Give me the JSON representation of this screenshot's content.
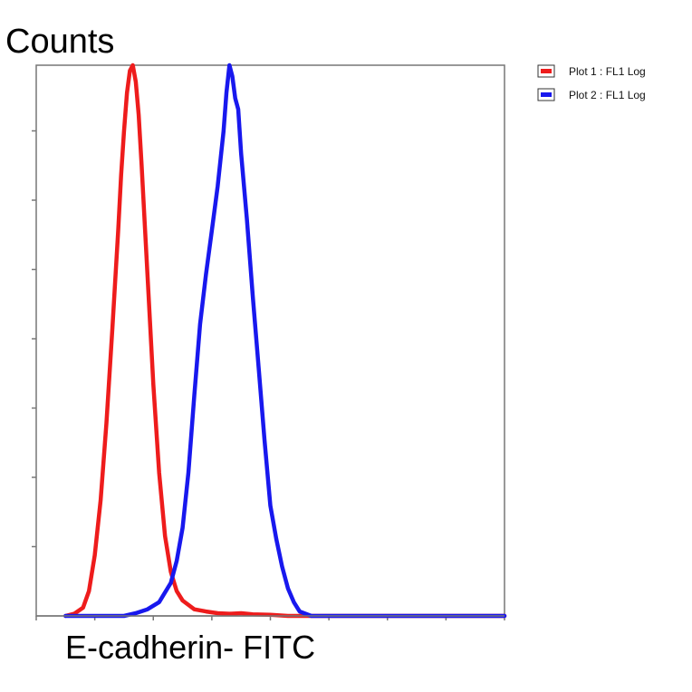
{
  "chart_data": {
    "type": "line",
    "title": "",
    "xlabel": "E-cadherin- FITC",
    "ylabel": "Counts",
    "xscale": "log",
    "xlim": [
      0,
      8
    ],
    "ylim": [
      0,
      100
    ],
    "grid": false,
    "legend_position": "top-right",
    "series": [
      {
        "name": "Plot 1 : FL1 Log",
        "color": "#ee1c1c",
        "x": [
          0.5,
          0.65,
          0.8,
          0.9,
          1.0,
          1.1,
          1.2,
          1.3,
          1.4,
          1.45,
          1.5,
          1.55,
          1.6,
          1.65,
          1.7,
          1.75,
          1.8,
          1.9,
          2.0,
          2.1,
          2.2,
          2.3,
          2.4,
          2.5,
          2.7,
          2.9,
          3.1,
          3.3,
          3.5,
          3.7,
          4.0,
          4.3,
          8.0
        ],
        "y": [
          0,
          0.4,
          1.5,
          4.5,
          11,
          21,
          35,
          52,
          70,
          80,
          88,
          95,
          99,
          100,
          97,
          91,
          82,
          62,
          42,
          26,
          14.5,
          8,
          4.5,
          2.8,
          1.2,
          0.8,
          0.5,
          0.4,
          0.5,
          0.3,
          0.2,
          0,
          0
        ]
      },
      {
        "name": "Plot 2 : FL1 Log",
        "color": "#1818ee",
        "x": [
          0.5,
          1.5,
          1.7,
          1.9,
          2.1,
          2.3,
          2.4,
          2.5,
          2.6,
          2.7,
          2.8,
          2.9,
          3.0,
          3.1,
          3.2,
          3.25,
          3.3,
          3.35,
          3.4,
          3.45,
          3.5,
          3.55,
          3.6,
          3.7,
          3.8,
          3.9,
          4.0,
          4.1,
          4.2,
          4.3,
          4.4,
          4.5,
          4.7,
          8.0
        ],
        "y": [
          0,
          0,
          0.5,
          1.2,
          2.5,
          6,
          10,
          16,
          26,
          40,
          53,
          62,
          70,
          78,
          88,
          95,
          100,
          98,
          94,
          92,
          84,
          78,
          72,
          58,
          45,
          32,
          20,
          14,
          9,
          5,
          2.5,
          0.8,
          0,
          0
        ]
      }
    ]
  }
}
